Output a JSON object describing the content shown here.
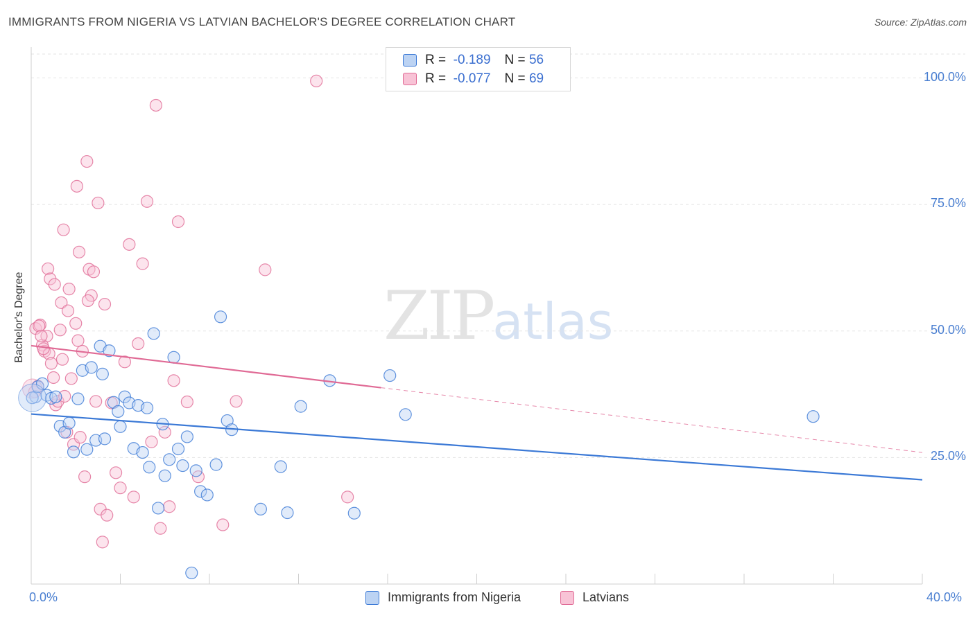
{
  "title": "IMMIGRANTS FROM NIGERIA VS LATVIAN BACHELOR'S DEGREE CORRELATION CHART",
  "source": "Source: ZipAtlas.com",
  "watermark": {
    "zip": "ZIP",
    "atlas": "atlas"
  },
  "colors": {
    "blue": "#3b79d6",
    "blue_fill": "#bcd3f3",
    "pink": "#e06a95",
    "pink_fill": "#f8c3d6",
    "axis_text": "#4a7fd1",
    "grid": "#e3e3e3"
  },
  "legend": {
    "rows": [
      {
        "r_label": "R =",
        "r_value": "-0.189",
        "n_label": "N =",
        "n_value": "56",
        "color": "blue"
      },
      {
        "r_label": "R =",
        "r_value": "-0.077",
        "n_label": "N =",
        "n_value": "69",
        "color": "pink"
      }
    ]
  },
  "bottom_legend": [
    "Immigrants from Nigeria",
    "Latvians"
  ],
  "chart_data": {
    "type": "scatter",
    "title": "IMMIGRANTS FROM NIGERIA VS LATVIAN BACHELOR'S DEGREE CORRELATION CHART",
    "xlabel": "",
    "ylabel": "Bachelor's Degree",
    "xlim": [
      0,
      40
    ],
    "ylim": [
      0,
      105
    ],
    "x_tick_labels": [
      "0.0%",
      "40.0%"
    ],
    "y_ticks": [
      25,
      50,
      75,
      100
    ],
    "y_tick_labels": [
      "25.0%",
      "50.0%",
      "75.0%",
      "100.0%"
    ],
    "grid": true,
    "legend_position": "top-center",
    "series": [
      {
        "name": "Immigrants from Nigeria",
        "color": "blue",
        "trend": {
          "x": [
            0,
            40
          ],
          "y": [
            33.6,
            20.6
          ]
        },
        "points": [
          [
            0.2,
            37.0
          ],
          [
            0.3,
            39.0
          ],
          [
            0.5,
            39.6
          ],
          [
            0.7,
            37.3
          ],
          [
            0.9,
            36.7
          ],
          [
            1.1,
            37.0
          ],
          [
            1.3,
            31.2
          ],
          [
            1.5,
            30.0
          ],
          [
            1.7,
            31.8
          ],
          [
            1.9,
            26.1
          ],
          [
            2.1,
            36.6
          ],
          [
            2.3,
            42.2
          ],
          [
            2.5,
            26.6
          ],
          [
            2.7,
            42.8
          ],
          [
            2.9,
            28.4
          ],
          [
            3.1,
            47.0
          ],
          [
            3.2,
            41.5
          ],
          [
            3.3,
            28.7
          ],
          [
            3.5,
            46.1
          ],
          [
            3.7,
            35.9
          ],
          [
            3.9,
            34.1
          ],
          [
            4.0,
            31.1
          ],
          [
            4.2,
            37.0
          ],
          [
            4.4,
            35.8
          ],
          [
            4.6,
            26.8
          ],
          [
            4.8,
            35.3
          ],
          [
            5.0,
            26.0
          ],
          [
            5.2,
            34.8
          ],
          [
            5.3,
            23.1
          ],
          [
            5.5,
            49.5
          ],
          [
            5.7,
            15.0
          ],
          [
            5.9,
            31.6
          ],
          [
            6.0,
            21.4
          ],
          [
            6.2,
            24.6
          ],
          [
            6.4,
            44.8
          ],
          [
            6.6,
            26.7
          ],
          [
            6.8,
            23.4
          ],
          [
            7.0,
            29.1
          ],
          [
            7.2,
            2.2
          ],
          [
            7.4,
            22.4
          ],
          [
            7.6,
            18.3
          ],
          [
            7.9,
            17.6
          ],
          [
            8.3,
            23.6
          ],
          [
            8.5,
            52.8
          ],
          [
            8.8,
            32.3
          ],
          [
            9.0,
            30.5
          ],
          [
            10.3,
            14.8
          ],
          [
            11.2,
            23.2
          ],
          [
            11.5,
            14.1
          ],
          [
            12.1,
            35.1
          ],
          [
            13.4,
            40.2
          ],
          [
            14.5,
            14.0
          ],
          [
            16.1,
            41.2
          ],
          [
            16.8,
            33.5
          ],
          [
            35.1,
            33.1
          ],
          [
            0.05,
            36.8
          ]
        ]
      },
      {
        "name": "Latvians",
        "color": "pink",
        "trend": {
          "x": [
            0,
            15.7
          ],
          "y": [
            47.1,
            38.8
          ]
        },
        "trend_dashed": {
          "x": [
            15.7,
            40
          ],
          "y": [
            38.8,
            26.0
          ]
        },
        "points": [
          [
            0.2,
            50.5
          ],
          [
            0.3,
            39.1
          ],
          [
            0.4,
            51.2
          ],
          [
            0.5,
            47.2
          ],
          [
            0.6,
            46.0
          ],
          [
            0.7,
            49.0
          ],
          [
            0.8,
            45.5
          ],
          [
            0.9,
            43.6
          ],
          [
            1.0,
            40.8
          ],
          [
            1.1,
            35.4
          ],
          [
            1.2,
            36.1
          ],
          [
            1.3,
            50.2
          ],
          [
            1.4,
            44.4
          ],
          [
            1.5,
            37.1
          ],
          [
            1.6,
            30.0
          ],
          [
            1.7,
            58.3
          ],
          [
            1.8,
            40.6
          ],
          [
            1.9,
            27.6
          ],
          [
            2.0,
            51.5
          ],
          [
            2.1,
            48.1
          ],
          [
            2.2,
            29.0
          ],
          [
            2.3,
            46.0
          ],
          [
            2.4,
            21.2
          ],
          [
            2.5,
            83.5
          ],
          [
            2.6,
            62.2
          ],
          [
            2.7,
            57.0
          ],
          [
            2.8,
            61.7
          ],
          [
            2.9,
            36.1
          ],
          [
            3.0,
            75.3
          ],
          [
            3.1,
            14.8
          ],
          [
            3.2,
            8.3
          ],
          [
            3.3,
            55.3
          ],
          [
            3.4,
            13.6
          ],
          [
            3.6,
            35.8
          ],
          [
            3.8,
            22.0
          ],
          [
            4.0,
            19.0
          ],
          [
            4.2,
            43.9
          ],
          [
            4.4,
            67.1
          ],
          [
            4.6,
            17.2
          ],
          [
            4.8,
            47.5
          ],
          [
            5.0,
            63.3
          ],
          [
            5.2,
            75.6
          ],
          [
            5.4,
            28.1
          ],
          [
            5.6,
            94.6
          ],
          [
            5.8,
            11.0
          ],
          [
            6.0,
            30.0
          ],
          [
            6.2,
            15.3
          ],
          [
            6.4,
            40.2
          ],
          [
            6.6,
            71.6
          ],
          [
            7.0,
            36.0
          ],
          [
            7.5,
            21.2
          ],
          [
            8.6,
            11.7
          ],
          [
            9.2,
            36.1
          ],
          [
            10.5,
            62.1
          ],
          [
            12.8,
            99.4
          ],
          [
            14.2,
            17.2
          ],
          [
            0.15,
            38.0
          ],
          [
            0.35,
            51.0
          ],
          [
            0.55,
            46.5
          ],
          [
            0.75,
            62.3
          ],
          [
            0.85,
            60.3
          ],
          [
            1.05,
            59.2
          ],
          [
            1.35,
            55.6
          ],
          [
            1.45,
            70.0
          ],
          [
            2.15,
            65.6
          ],
          [
            2.05,
            78.6
          ],
          [
            2.55,
            56.0
          ],
          [
            1.65,
            54.0
          ],
          [
            0.45,
            49.0
          ]
        ]
      }
    ]
  }
}
